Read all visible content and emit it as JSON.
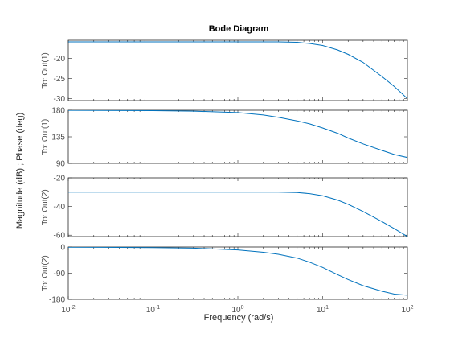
{
  "chart_data": {
    "type": "line",
    "title": "Bode Diagram",
    "xlabel": "Frequency  (rad/s)",
    "ylabel": "Magnitude (dB) ; Phase (deg)",
    "xscale": "log",
    "xlim": [
      0.01,
      100
    ],
    "xticks": [
      {
        "value": 0.01,
        "mant": "10",
        "exp": "-2"
      },
      {
        "value": 0.1,
        "mant": "10",
        "exp": "-1"
      },
      {
        "value": 1,
        "mant": "10",
        "exp": "0"
      },
      {
        "value": 10,
        "mant": "10",
        "exp": "1"
      },
      {
        "value": 100,
        "mant": "10",
        "exp": "2"
      }
    ],
    "line_color": "#0072bd",
    "grid": false,
    "subplots": [
      {
        "row_label": "To: Out(1)",
        "quantity": "magnitude",
        "ylim": [
          -30.5,
          -15.5
        ],
        "yticks": [
          -20,
          -25,
          -30
        ],
        "x": [
          0.01,
          0.1,
          1,
          2,
          3,
          5,
          7,
          10,
          15,
          20,
          30,
          50,
          70,
          100
        ],
        "y": [
          -15.9,
          -15.9,
          -15.9,
          -15.9,
          -15.9,
          -16.0,
          -16.3,
          -16.8,
          -17.9,
          -19.0,
          -21.0,
          -24.5,
          -27.0,
          -30.0
        ]
      },
      {
        "row_label": "To: Out(1)",
        "quantity": "phase",
        "ylim": [
          90,
          180
        ],
        "yticks": [
          180,
          135,
          90
        ],
        "x": [
          0.01,
          0.1,
          0.3,
          1,
          2,
          3,
          5,
          7,
          10,
          15,
          20,
          30,
          50,
          70,
          100
        ],
        "y": [
          179.8,
          179.3,
          178.5,
          176.0,
          172.0,
          168.0,
          162.0,
          157.0,
          150.0,
          141.0,
          133.0,
          123.0,
          112.0,
          105.0,
          100.0
        ]
      },
      {
        "row_label": "To: Out(2)",
        "quantity": "magnitude",
        "ylim": [
          -61,
          -20
        ],
        "yticks": [
          -20,
          -40,
          -60
        ],
        "x": [
          0.01,
          0.1,
          1,
          3,
          5,
          7,
          10,
          15,
          20,
          30,
          50,
          70,
          100
        ],
        "y": [
          -30.0,
          -30.0,
          -30.0,
          -30.0,
          -30.2,
          -31.0,
          -32.5,
          -35.5,
          -38.5,
          -43.5,
          -50.5,
          -55.5,
          -61.0
        ]
      },
      {
        "row_label": "To: Out(2)",
        "quantity": "phase",
        "ylim": [
          -180,
          0
        ],
        "yticks": [
          0,
          -90,
          -180
        ],
        "x": [
          0.01,
          0.1,
          0.3,
          1,
          2,
          3,
          5,
          7,
          10,
          15,
          20,
          30,
          50,
          70,
          100
        ],
        "y": [
          -0.5,
          -2.0,
          -4.0,
          -10.0,
          -18.0,
          -25.0,
          -38.0,
          -52.0,
          -70.0,
          -95.0,
          -112.0,
          -133.0,
          -152.0,
          -162.0,
          -166.0
        ]
      }
    ]
  }
}
